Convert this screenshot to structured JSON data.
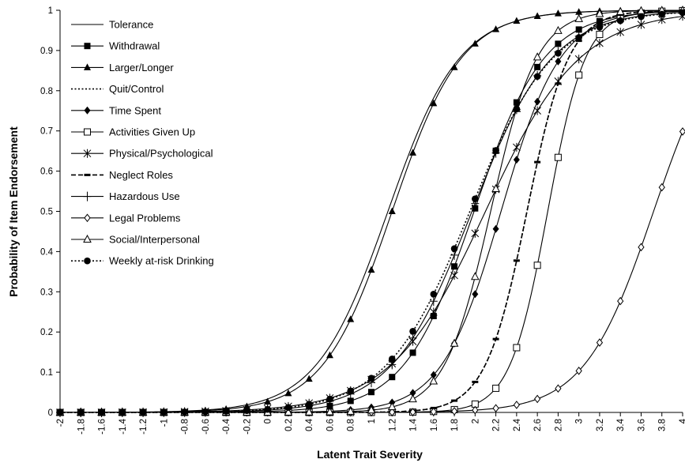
{
  "chart_data": {
    "type": "line",
    "title": "",
    "xlabel": "Latent Trait Severity",
    "ylabel": "Probability of Item Endorsement",
    "xlim": [
      -2,
      4
    ],
    "ylim": [
      0,
      1
    ],
    "x_ticks": [
      "-2",
      "-1.8",
      "-1.6",
      "-1.4",
      "-1.2",
      "-1",
      "-0.8",
      "-0.6",
      "-0.4",
      "-0.2",
      "0",
      "0.2",
      "0.4",
      "0.6",
      "0.8",
      "1",
      "1.2",
      "1.4",
      "1.6",
      "1.8",
      "2",
      "2.2",
      "2.4",
      "2.6",
      "2.8",
      "3",
      "3.2",
      "3.4",
      "3.6",
      "3.8",
      "4"
    ],
    "y_ticks": [
      "0",
      "0.1",
      "0.2",
      "0.3",
      "0.4",
      "0.5",
      "0.6",
      "0.7",
      "0.8",
      "0.9",
      "1"
    ],
    "grid": false,
    "legend_position": "top-left",
    "series": [
      {
        "name": "Tolerance",
        "line": "solid",
        "marker": "none",
        "a": 2.9,
        "b": 1.16
      },
      {
        "name": "Withdrawal",
        "line": "solid",
        "marker": "square-filled",
        "a": 2.96,
        "b": 1.99
      },
      {
        "name": "Larger/Longer",
        "line": "solid",
        "marker": "triangle-filled",
        "a": 3.0,
        "b": 1.2
      },
      {
        "name": "Quit/Control",
        "line": "dotted",
        "marker": "none",
        "a": 5.0,
        "b": 2.5
      },
      {
        "name": "Time Spent",
        "line": "solid",
        "marker": "diamond-filled",
        "a": 3.5,
        "b": 2.25
      },
      {
        "name": "Activities Given Up",
        "line": "solid",
        "marker": "square-open",
        "a": 5.5,
        "b": 2.7
      },
      {
        "name": "Physical/Psychological",
        "line": "solid",
        "marker": "asterisk",
        "a": 2.2,
        "b": 2.1
      },
      {
        "name": "Neglect Roles",
        "line": "dashed",
        "marker": "dash",
        "a": 5.0,
        "b": 2.5
      },
      {
        "name": "Hazardous Use",
        "line": "solid",
        "marker": "plus",
        "a": 2.6,
        "b": 1.97
      },
      {
        "name": "Legal Problems",
        "line": "solid",
        "marker": "diamond-open",
        "a": 3.0,
        "b": 3.72
      },
      {
        "name": "Social/Interpersonal",
        "line": "solid",
        "marker": "triangle-open",
        "a": 4.5,
        "b": 2.15
      },
      {
        "name": "Weekly at-risk Drinking",
        "line": "dotted",
        "marker": "circle-filled",
        "a": 2.5,
        "b": 1.95
      }
    ]
  }
}
